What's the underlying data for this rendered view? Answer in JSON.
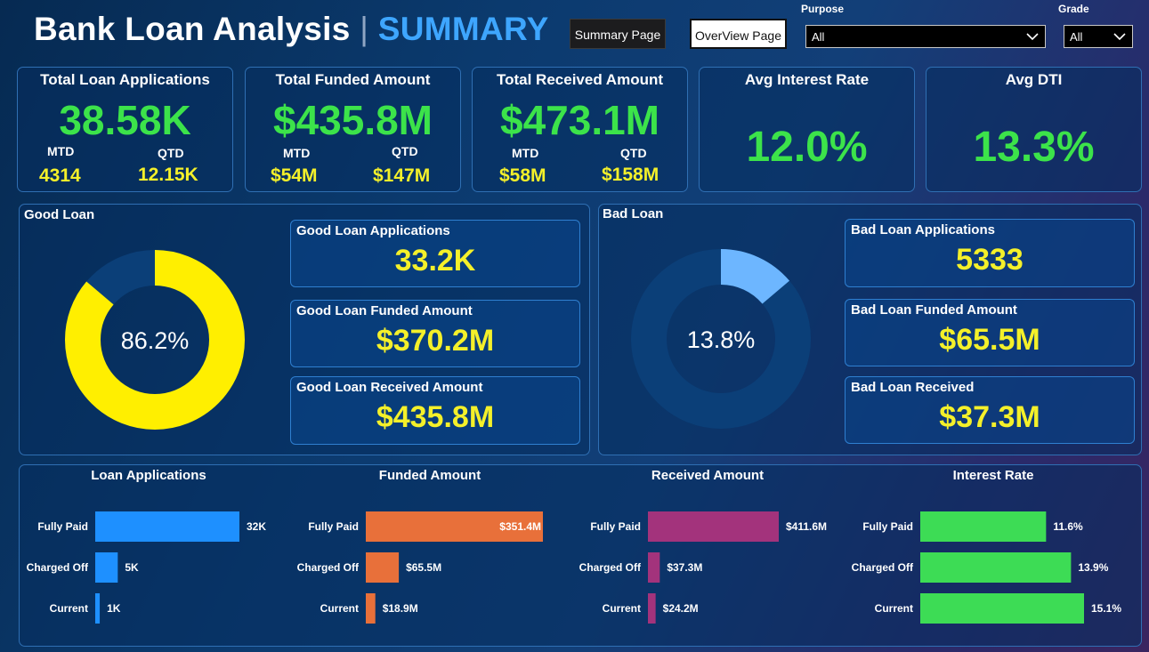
{
  "header": {
    "title_main": "Bank Loan Analysis",
    "title_sep": "|",
    "title_accent": "SUMMARY",
    "summary_button": "Summary Page",
    "overview_button": "OverView Page"
  },
  "filters": {
    "purpose": {
      "label": "Purpose",
      "value": "All"
    },
    "grade": {
      "label": "Grade",
      "value": "All"
    }
  },
  "kpis": {
    "applications": {
      "title": "Total Loan Applications",
      "value": "38.58K",
      "mtd_label": "MTD",
      "mtd": "4314",
      "qtd_label": "QTD",
      "qtd": "12.15K"
    },
    "funded": {
      "title": "Total Funded Amount",
      "value": "$435.8M",
      "mtd_label": "MTD",
      "mtd": "$54M",
      "qtd_label": "QTD",
      "qtd": "$147M"
    },
    "received": {
      "title": "Total Received Amount",
      "value": "$473.1M",
      "mtd_label": "MTD",
      "mtd": "$58M",
      "qtd_label": "QTD",
      "qtd": "$158M"
    },
    "interest": {
      "title": "Avg Interest Rate",
      "value": "12.0%"
    },
    "dti": {
      "title": "Avg DTI",
      "value": "13.3%"
    }
  },
  "good_loan": {
    "title": "Good Loan",
    "percent_label": "86.2%",
    "percent": 86.2,
    "applications": {
      "title": "Good Loan Applications",
      "value": "33.2K"
    },
    "funded": {
      "title": "Good Loan Funded Amount",
      "value": "$370.2M"
    },
    "received": {
      "title": "Good Loan Received Amount",
      "value": "$435.8M"
    },
    "colors": {
      "fill": "#ffef00",
      "rest": "#0b3f78"
    }
  },
  "bad_loan": {
    "title": "Bad Loan",
    "percent_label": "13.8%",
    "percent": 13.8,
    "applications": {
      "title": "Bad Loan Applications",
      "value": "5333"
    },
    "funded": {
      "title": "Bad Loan Funded Amount",
      "value": "$65.5M"
    },
    "received": {
      "title": "Bad Loan Received",
      "value": "$37.3M"
    },
    "colors": {
      "fill": "#6db6ff",
      "rest": "#0b3f78"
    }
  },
  "chart_data": [
    {
      "type": "bar",
      "title": "Loan Applications",
      "categories": [
        "Fully Paid",
        "Charged Off",
        "Current"
      ],
      "values": [
        32000,
        5000,
        1000
      ],
      "labels": [
        "32K",
        "5K",
        "1K"
      ],
      "color": "#1e90ff"
    },
    {
      "type": "bar",
      "title": "Funded Amount",
      "categories": [
        "Fully Paid",
        "Charged Off",
        "Current"
      ],
      "values": [
        351.4,
        65.5,
        18.9
      ],
      "labels": [
        "$351.4M",
        "$65.5M",
        "$18.9M"
      ],
      "color": "#e8703a"
    },
    {
      "type": "bar",
      "title": "Received Amount",
      "categories": [
        "Fully Paid",
        "Charged Off",
        "Current"
      ],
      "values": [
        411.6,
        37.3,
        24.2
      ],
      "labels": [
        "$411.6M",
        "$37.3M",
        "$24.2M"
      ],
      "color": "#a3337c"
    },
    {
      "type": "bar",
      "title": "Interest Rate",
      "categories": [
        "Fully Paid",
        "Charged Off",
        "Current"
      ],
      "values": [
        11.6,
        13.9,
        15.1
      ],
      "labels": [
        "11.6%",
        "13.9%",
        "15.1%"
      ],
      "color": "#3ddc55"
    }
  ]
}
